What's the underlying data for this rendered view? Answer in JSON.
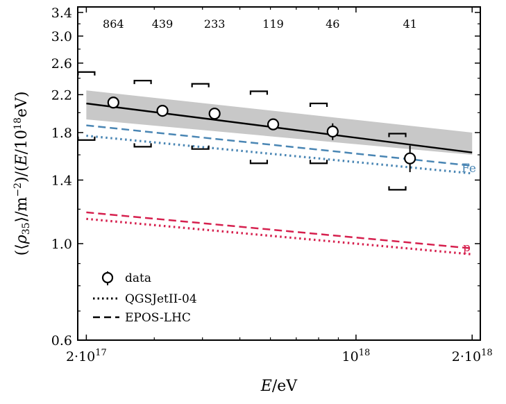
{
  "chart_data": {
    "type": "line",
    "xscale": "log",
    "yscale": "log",
    "xlabel": "E/eV",
    "ylabel": "(⟨ρ35⟩/m⁻²)/(E/10¹⁸eV)",
    "xlim": [
      1.9e+17,
      2.1e+18
    ],
    "ylim": [
      0.6,
      3.5
    ],
    "xticks": [
      {
        "value": 2e+17,
        "base": "2·10",
        "exp": "17"
      },
      {
        "value": 1e+18,
        "base": "10",
        "exp": "18"
      },
      {
        "value": 2e+18,
        "base": "2·10",
        "exp": "18"
      }
    ],
    "yticks": [
      {
        "value": 0.6,
        "label": "0.6"
      },
      {
        "value": 1.0,
        "label": "1.0"
      },
      {
        "value": 1.4,
        "label": "1.4"
      },
      {
        "value": 1.8,
        "label": "1.8"
      },
      {
        "value": 2.2,
        "label": "2.2"
      },
      {
        "value": 2.6,
        "label": "2.6"
      },
      {
        "value": 3.0,
        "label": "3.0"
      },
      {
        "value": 3.4,
        "label": "3.4"
      }
    ],
    "data": {
      "name": "data",
      "points": [
        {
          "x": 2.35e+17,
          "y": 2.11,
          "yerr": 0.04,
          "count": "864"
        },
        {
          "x": 3.15e+17,
          "y": 2.02,
          "yerr": 0.04,
          "count": "439"
        },
        {
          "x": 4.3e+17,
          "y": 1.99,
          "yerr": 0.04,
          "count": "233"
        },
        {
          "x": 6.1e+17,
          "y": 1.88,
          "yerr": 0.05,
          "count": "119"
        },
        {
          "x": 8.7e+17,
          "y": 1.81,
          "yerr": 0.08,
          "count": "46"
        },
        {
          "x": 1.38e+18,
          "y": 1.57,
          "yerr": 0.11,
          "count": "41"
        }
      ]
    },
    "systematics": [
      {
        "x": 2e+17,
        "upper": 2.48,
        "lower": 1.73
      },
      {
        "x": 2.8e+17,
        "upper": 2.37,
        "lower": 1.67
      },
      {
        "x": 3.95e+17,
        "upper": 2.33,
        "lower": 1.65
      },
      {
        "x": 5.6e+17,
        "upper": 2.24,
        "lower": 1.53
      },
      {
        "x": 8e+17,
        "upper": 2.1,
        "lower": 1.53
      },
      {
        "x": 1.28e+18,
        "upper": 1.79,
        "lower": 1.33
      }
    ],
    "fit": {
      "x": [
        2e+17,
        2e+18
      ],
      "y": [
        2.1,
        1.62
      ],
      "band_upper": [
        2.25,
        1.8
      ],
      "band_lower": [
        1.93,
        1.6
      ]
    },
    "models": [
      {
        "name": "Fe",
        "generator": "EPOS-LHC",
        "style": "dashed",
        "color": "#4a86b4",
        "x": [
          2e+17,
          2e+18
        ],
        "y": [
          1.87,
          1.51
        ]
      },
      {
        "name": "Fe",
        "generator": "QGSJetII-04",
        "style": "dotted",
        "color": "#4a86b4",
        "x": [
          2e+17,
          2e+18
        ],
        "y": [
          1.77,
          1.45
        ]
      },
      {
        "name": "p",
        "generator": "EPOS-LHC",
        "style": "dashed",
        "color": "#d6204e",
        "x": [
          2e+17,
          2e+18
        ],
        "y": [
          1.18,
          0.975
        ]
      },
      {
        "name": "p",
        "generator": "QGSJetII-04",
        "style": "dotted",
        "color": "#d6204e",
        "x": [
          2e+17,
          2e+18
        ],
        "y": [
          1.14,
          0.945
        ]
      }
    ],
    "model_labels": {
      "fe": "Fe",
      "p": "p"
    },
    "legend": {
      "position": "lower-left",
      "entries": [
        {
          "label": "data",
          "style": "marker"
        },
        {
          "label": "QGSJetII-04",
          "style": "dotted"
        },
        {
          "label": "EPOS-LHC",
          "style": "dashed"
        }
      ]
    },
    "colors": {
      "fe": "#4a86b4",
      "p": "#d6204e",
      "band": "#c8c8c8",
      "fit": "#000000"
    }
  }
}
